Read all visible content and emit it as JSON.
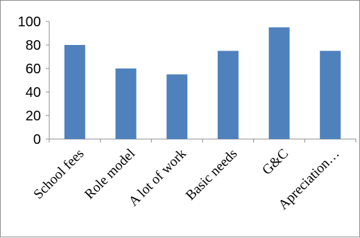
{
  "chart_data": {
    "type": "bar",
    "title": "",
    "xlabel": "",
    "ylabel": "",
    "categories": [
      "School fees",
      "Role model",
      "A lot of work",
      "Basic needs",
      "G&C",
      "Apreciation…"
    ],
    "values": [
      80,
      60,
      55,
      75,
      95,
      75
    ],
    "ylim": [
      0,
      100
    ],
    "yticks": [
      0,
      20,
      40,
      60,
      80,
      100
    ],
    "grid": false,
    "legend": "none",
    "bar_color": "#4f81bd"
  }
}
